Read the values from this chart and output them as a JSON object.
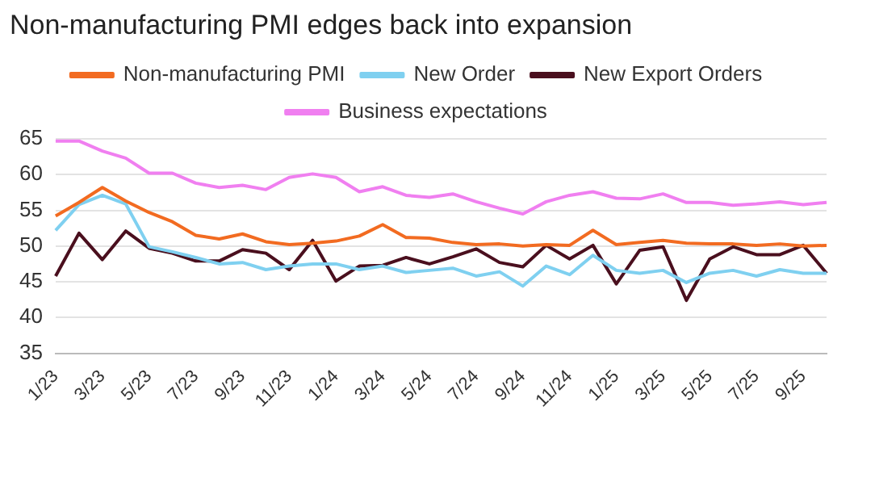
{
  "chart_data": {
    "type": "line",
    "title": "Non-manufacturing PMI edges back into expansion",
    "categories": [
      "1/23",
      null,
      "3/23",
      null,
      "5/23",
      null,
      "7/23",
      null,
      "9/23",
      null,
      "11/23",
      null,
      "1/24",
      null,
      "3/24",
      null,
      "5/24",
      null,
      "7/24",
      null,
      "9/24",
      null,
      "11/24",
      null,
      "1/25",
      null,
      "3/25",
      null,
      "5/25",
      null,
      "7/25",
      null,
      "9/25",
      null
    ],
    "series": [
      {
        "name": "Non-manufacturing PMI",
        "color": "#f26b21",
        "values": [
          54.2,
          56.1,
          58.2,
          56.3,
          54.7,
          53.4,
          51.5,
          51.0,
          51.7,
          50.6,
          50.2,
          50.4,
          50.7,
          51.4,
          53.0,
          51.2,
          51.1,
          50.5,
          50.2,
          50.3,
          50.0,
          50.2,
          50.1,
          52.2,
          50.2,
          50.5,
          50.8,
          50.4,
          50.3,
          50.3,
          50.1,
          50.3,
          50.0,
          50.1
        ]
      },
      {
        "name": "New Order",
        "color": "#7fd0f0",
        "values": [
          52.2,
          55.8,
          57.1,
          55.9,
          49.9,
          49.2,
          48.4,
          47.5,
          47.7,
          46.7,
          47.2,
          47.5,
          47.5,
          46.7,
          47.2,
          46.3,
          46.6,
          46.9,
          45.8,
          46.4,
          44.4,
          47.2,
          46.0,
          48.7,
          46.6,
          46.2,
          46.6,
          44.9,
          46.2,
          46.6,
          45.8,
          46.7,
          46.2,
          46.2
        ]
      },
      {
        "name": "New Export Orders",
        "color": "#4a0f1e",
        "values": [
          45.8,
          51.8,
          48.1,
          52.1,
          49.7,
          49.0,
          47.9,
          47.9,
          49.5,
          49.0,
          46.7,
          50.8,
          45.1,
          47.2,
          47.3,
          48.4,
          47.5,
          48.5,
          49.6,
          47.7,
          47.1,
          50.1,
          48.2,
          50.1,
          44.7,
          49.4,
          49.9,
          42.4,
          48.2,
          49.9,
          48.8,
          48.8,
          50.1,
          46.2
        ]
      },
      {
        "name": "Business expectations",
        "color": "#f07ff0",
        "values": [
          64.7,
          64.7,
          63.3,
          62.3,
          60.2,
          60.2,
          58.8,
          58.2,
          58.5,
          57.9,
          59.6,
          60.1,
          59.6,
          57.6,
          58.3,
          57.1,
          56.8,
          57.3,
          56.2,
          55.3,
          54.5,
          56.2,
          57.1,
          57.6,
          56.7,
          56.6,
          57.3,
          56.1,
          56.1,
          55.7,
          55.9,
          56.2,
          55.8,
          56.1
        ]
      }
    ],
    "ylim": [
      35,
      65
    ],
    "yticks": [
      35,
      40,
      45,
      50,
      55,
      60,
      65
    ],
    "grid": "y",
    "legend": "top",
    "marker": "none",
    "line_style": "solid"
  }
}
